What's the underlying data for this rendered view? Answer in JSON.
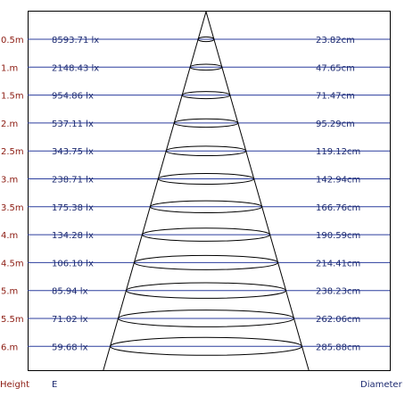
{
  "colors": {
    "frame": "#000000",
    "row_line": "#2c3e9e",
    "distance_text": "#8b1a10",
    "value_text": "#1c2a70",
    "cone": "#000000"
  },
  "footer": {
    "height_label": "Height",
    "illuminance_label": "E",
    "diameter_label": "Diameter"
  },
  "chart_data": {
    "type": "table",
    "description_columns": [
      "Height",
      "E",
      "Diameter"
    ],
    "rows": [
      {
        "distance": "0.5m",
        "illuminance": "8593.71 lx",
        "diameter": "23.82cm",
        "diameter_cm": 23.82
      },
      {
        "distance": "1.m",
        "illuminance": "2148.43 lx",
        "diameter": "47.65cm",
        "diameter_cm": 47.65
      },
      {
        "distance": "1.5m",
        "illuminance": "954.86 lx",
        "diameter": "71.47cm",
        "diameter_cm": 71.47
      },
      {
        "distance": "2.m",
        "illuminance": "537.11 lx",
        "diameter": "95.29cm",
        "diameter_cm": 95.29
      },
      {
        "distance": "2.5m",
        "illuminance": "343.75 lx",
        "diameter": "119.12cm",
        "diameter_cm": 119.12
      },
      {
        "distance": "3.m",
        "illuminance": "238.71 lx",
        "diameter": "142.94cm",
        "diameter_cm": 142.94
      },
      {
        "distance": "3.5m",
        "illuminance": "175.38 lx",
        "diameter": "166.76cm",
        "diameter_cm": 166.76
      },
      {
        "distance": "4.m",
        "illuminance": "134.28 lx",
        "diameter": "190.59cm",
        "diameter_cm": 190.59
      },
      {
        "distance": "4.5m",
        "illuminance": "106.10 lx",
        "diameter": "214.41cm",
        "diameter_cm": 214.41
      },
      {
        "distance": "5.m",
        "illuminance": "85.94 lx",
        "diameter": "238.23cm",
        "diameter_cm": 238.23
      },
      {
        "distance": "5.5m",
        "illuminance": "71.02 lx",
        "diameter": "262.06cm",
        "diameter_cm": 262.06
      },
      {
        "distance": "6.m",
        "illuminance": "59.68 lx",
        "diameter": "285.88cm",
        "diameter_cm": 285.88
      }
    ]
  }
}
